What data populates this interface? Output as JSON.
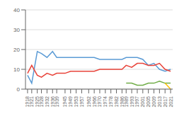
{
  "chart_data": {
    "type": "line",
    "x": [
      1918,
      1921,
      1925,
      1928,
      1932,
      1936,
      1939,
      1945,
      1949,
      1953,
      1957,
      1962,
      1966,
      1970,
      1974,
      1978,
      1982,
      1986,
      1989,
      1993,
      1997,
      2001,
      2005,
      2009,
      2013,
      2017,
      2021
    ],
    "series": [
      {
        "color": "#5b9bd5",
        "values": [
          7,
          3,
          19,
          18,
          16,
          19,
          16,
          16,
          16,
          16,
          16,
          16,
          16,
          15,
          15,
          15,
          15,
          15,
          16,
          16,
          16,
          15,
          12,
          13,
          10,
          9,
          10
        ]
      },
      {
        "color": "#e8433a",
        "values": [
          8,
          12,
          7,
          6,
          8,
          7,
          8,
          8,
          9,
          9,
          9,
          9,
          9,
          10,
          10,
          10,
          10,
          10,
          12,
          11,
          13,
          13,
          12,
          12,
          13,
          10,
          9
        ]
      },
      {
        "color": "#70ad47",
        "values": [
          null,
          null,
          null,
          null,
          null,
          null,
          null,
          null,
          null,
          null,
          null,
          null,
          null,
          null,
          null,
          null,
          null,
          null,
          3,
          3,
          2,
          2,
          3,
          3,
          4,
          3,
          3
        ]
      },
      {
        "color": "#ffc000",
        "values": [
          null,
          null,
          null,
          null,
          null,
          null,
          null,
          null,
          null,
          null,
          null,
          null,
          null,
          null,
          null,
          null,
          null,
          null,
          null,
          null,
          null,
          null,
          null,
          null,
          null,
          3,
          0
        ]
      },
      {
        "color": "#00b0f0",
        "values": [
          null,
          null,
          null,
          null,
          null,
          null,
          null,
          null,
          null,
          null,
          null,
          null,
          null,
          null,
          null,
          null,
          null,
          null,
          null,
          null,
          null,
          null,
          null,
          null,
          null,
          null,
          3
        ]
      }
    ],
    "xlim": [
      1916.5,
      2022.5
    ],
    "xticks": [
      1918,
      1921,
      1925,
      1928,
      1932,
      1936,
      1939,
      1945,
      1949,
      1953,
      1957,
      1962,
      1966,
      1970,
      1974,
      1978,
      1982,
      1986,
      1989,
      1993,
      1997,
      2001,
      2005,
      2009,
      2013,
      2017,
      2021
    ],
    "ylim": [
      0,
      40
    ],
    "yticks": [
      0,
      10,
      20,
      30,
      40
    ],
    "grid": "y"
  }
}
